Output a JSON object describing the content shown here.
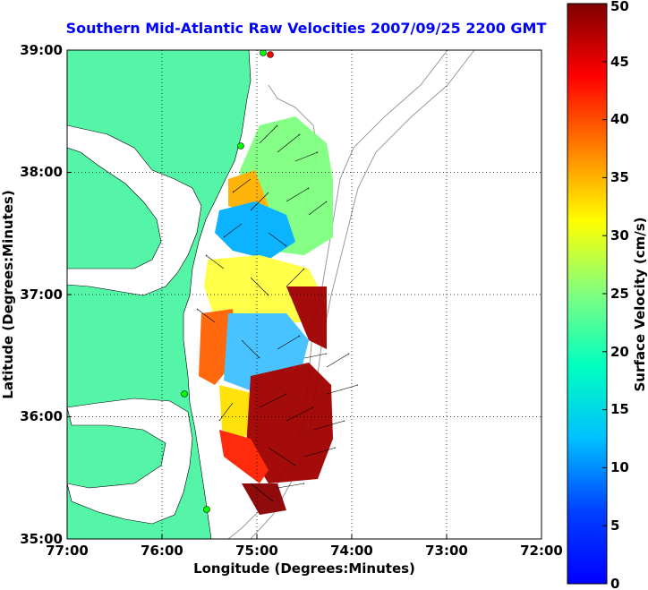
{
  "title": "Southern Mid-Atlantic Raw Velocities 2007/09/25 2200 GMT",
  "map": {
    "x_axis_label": "Longitude (Degrees:Minutes)",
    "y_axis_label": "Latitude (Degrees:Minutes)",
    "x_tick_labels": [
      "77:00",
      "76:00",
      "75:00",
      "74:00",
      "73:00",
      "72:00"
    ],
    "y_tick_labels": [
      "39:00",
      "38:00",
      "37:00",
      "36:00",
      "35:00"
    ],
    "lon_range_deg": [
      -77,
      -72
    ],
    "lat_range_deg": [
      35,
      39
    ],
    "grid": "dotted",
    "land_color": "#55f5a8",
    "water_color": "#ffffff",
    "bathymetry_color": "#9a9a9a",
    "vector_color": "#000000",
    "field_layer": "surface velocity magnitude (cm/s) with current vectors"
  },
  "colorbar": {
    "label": "Surface Velocity (cm/s)",
    "tick_labels": [
      "0",
      "5",
      "10",
      "15",
      "20",
      "25",
      "30",
      "35",
      "40",
      "45",
      "50"
    ],
    "range": [
      0,
      50
    ],
    "colormap": "jet"
  },
  "stations": {
    "marker_color_active": "#00ff00",
    "marker_color_inactive": "#ff0000",
    "count_active": 4,
    "count_inactive": 1
  }
}
